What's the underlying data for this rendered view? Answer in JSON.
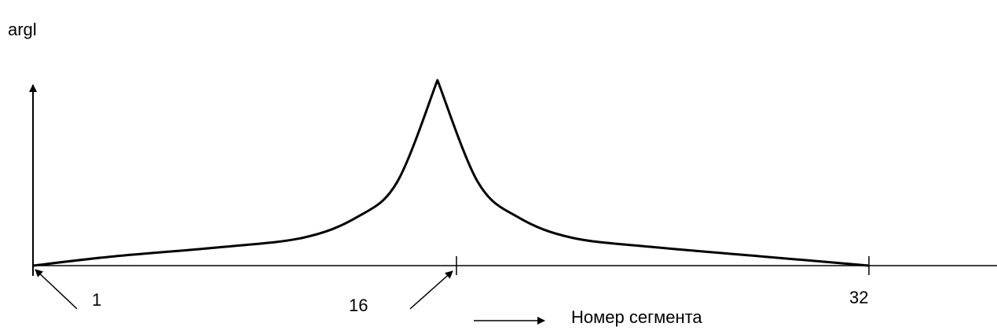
{
  "chart_data": {
    "type": "line",
    "ylabel": "argl",
    "xlabel": "Номер сегмента",
    "x_tick_labels": [
      "1",
      "16",
      "32"
    ],
    "x": [
      1,
      4,
      8,
      11,
      13,
      14.5,
      16,
      17.5,
      19,
      21,
      24,
      28,
      32
    ],
    "y": [
      0,
      0.05,
      0.1,
      0.15,
      0.26,
      0.45,
      1.0,
      0.45,
      0.26,
      0.15,
      0.1,
      0.05,
      0
    ],
    "xlim": [
      1,
      32
    ],
    "ylim": [
      0,
      1
    ],
    "grid": false,
    "colors": {
      "line": "#000000",
      "axis": "#000000"
    }
  }
}
